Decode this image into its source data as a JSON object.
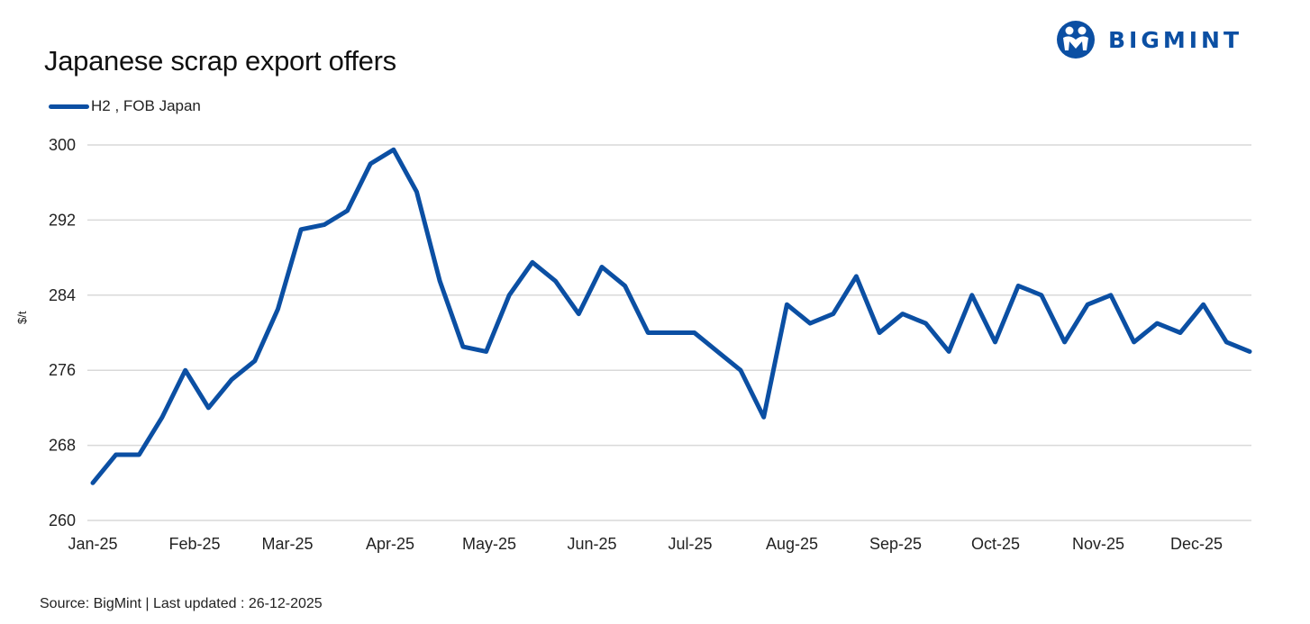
{
  "header": {
    "title": "Japanese scrap export offers",
    "logo_text": "BIGMINT",
    "logo_icon": "bigmint-people-icon"
  },
  "legend": [
    {
      "label": "H2 , FOB Japan",
      "color": "#0b4fa3"
    }
  ],
  "footer": {
    "source": "Source: BigMint  | Last updated : 26-12-2025"
  },
  "colors": {
    "series": "#0b4fa3",
    "grid": "#d9d9d9",
    "brand": "#0b4fa3"
  },
  "chart_data": {
    "type": "line",
    "title": "Japanese scrap export offers",
    "xlabel": "",
    "ylabel": "$/t",
    "ylim": [
      260,
      300
    ],
    "yticks": [
      260,
      268,
      276,
      284,
      292,
      300
    ],
    "xtick_labels": [
      "Jan-25",
      "Feb-25",
      "Mar-25",
      "Apr-25",
      "May-25",
      "Jun-25",
      "Jul-25",
      "Aug-25",
      "Sep-25",
      "Oct-25",
      "Nov-25",
      "Dec-25"
    ],
    "grid": true,
    "legend_position": "top-left",
    "series": [
      {
        "name": "H2 , FOB Japan",
        "values": [
          264,
          267,
          267,
          271,
          276,
          272,
          275,
          277,
          282.5,
          291,
          291.5,
          293,
          298,
          299.5,
          295,
          285.5,
          278.5,
          278,
          284,
          287.5,
          285.5,
          282,
          287,
          285,
          280,
          280,
          280,
          278,
          276,
          271,
          283,
          281,
          282,
          286,
          280,
          282,
          281,
          278,
          284,
          279,
          285,
          284,
          279,
          283,
          284,
          279,
          281,
          280,
          283,
          279,
          278
        ]
      }
    ]
  }
}
